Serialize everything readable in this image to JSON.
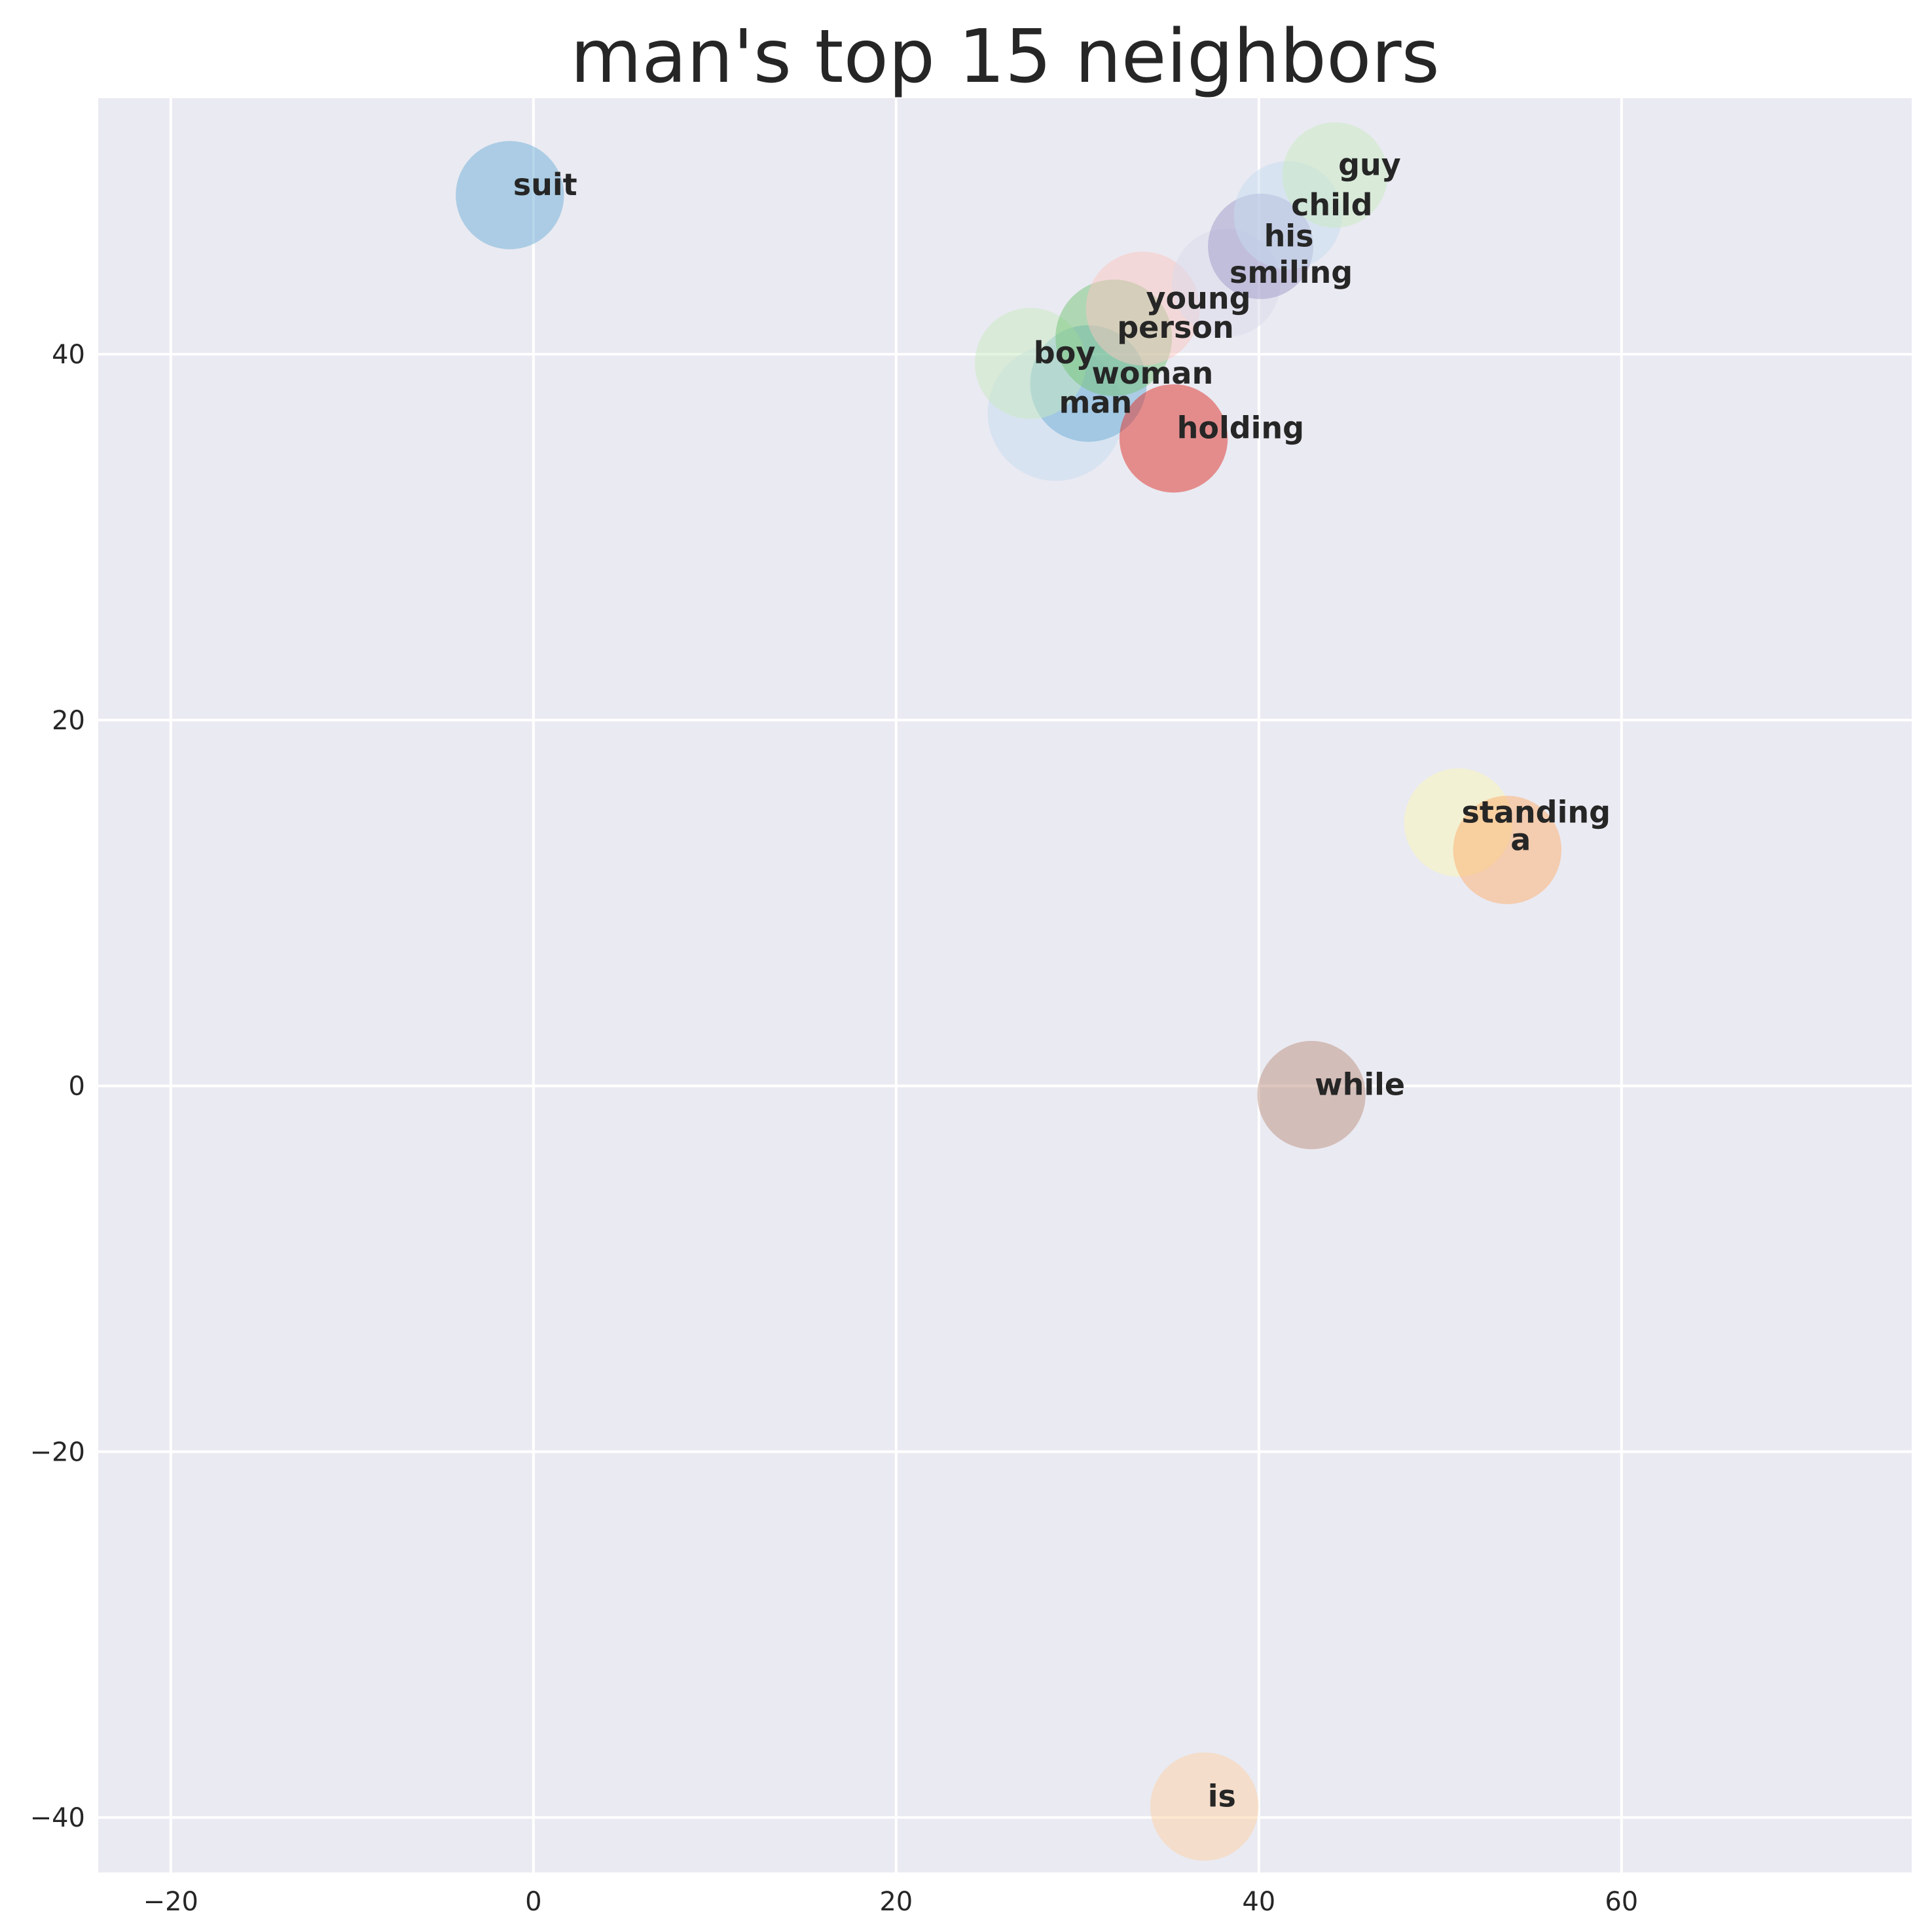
{
  "chart_data": {
    "type": "scatter",
    "title": "man's top 15 neighbors",
    "xlabel": "",
    "ylabel": "",
    "xlim": [
      -24,
      76
    ],
    "ylim": [
      -43,
      54
    ],
    "x_ticks": [
      -20,
      0,
      20,
      40,
      60
    ],
    "y_ticks": [
      -40,
      -20,
      0,
      20,
      40
    ],
    "x_tick_labels": [
      "−20",
      "0",
      "20",
      "40",
      "60"
    ],
    "y_tick_labels": [
      "−40",
      "−20",
      "0",
      "20",
      "40"
    ],
    "grid": true,
    "background_color": "#eaeaf2",
    "grid_color": "#ffffff",
    "points": [
      {
        "label": "man",
        "x": 28.8,
        "y": 36.8,
        "size": 3.0,
        "color": "#c6dbef"
      },
      {
        "label": "woman",
        "x": 30.6,
        "y": 38.4,
        "size": 2.2,
        "color": "#6baed6"
      },
      {
        "label": "boy",
        "x": 27.4,
        "y": 39.5,
        "size": 2.0,
        "color": "#c7e9c0"
      },
      {
        "label": "person",
        "x": 32.0,
        "y": 40.9,
        "size": 2.2,
        "color": "#74c476"
      },
      {
        "label": "young",
        "x": 33.6,
        "y": 42.5,
        "size": 2.1,
        "color": "#fcc5c0"
      },
      {
        "label": "smiling",
        "x": 38.2,
        "y": 43.9,
        "size": 1.9,
        "color": "#dadaeb"
      },
      {
        "label": "his",
        "x": 40.1,
        "y": 45.9,
        "size": 1.8,
        "color": "#9e9ac8"
      },
      {
        "label": "child",
        "x": 41.6,
        "y": 47.6,
        "size": 1.9,
        "color": "#c6dbef"
      },
      {
        "label": "guy",
        "x": 44.2,
        "y": 49.8,
        "size": 1.8,
        "color": "#c7e9c0"
      },
      {
        "label": "suit",
        "x": -1.3,
        "y": 48.7,
        "size": 1.9,
        "color": "#6baed6"
      },
      {
        "label": "holding",
        "x": 35.3,
        "y": 35.4,
        "size": 1.9,
        "color": "#de2d26"
      },
      {
        "label": "standing",
        "x": 51.0,
        "y": 14.4,
        "size": 1.9,
        "color": "#fcf7b4"
      },
      {
        "label": "a",
        "x": 53.7,
        "y": 12.9,
        "size": 1.9,
        "color": "#fdae6b"
      },
      {
        "label": "while",
        "x": 42.9,
        "y": -0.5,
        "size": 1.9,
        "color": "#bc8f7e"
      },
      {
        "label": "is",
        "x": 37.0,
        "y": -39.4,
        "size": 1.9,
        "color": "#fdd0a2"
      }
    ]
  }
}
